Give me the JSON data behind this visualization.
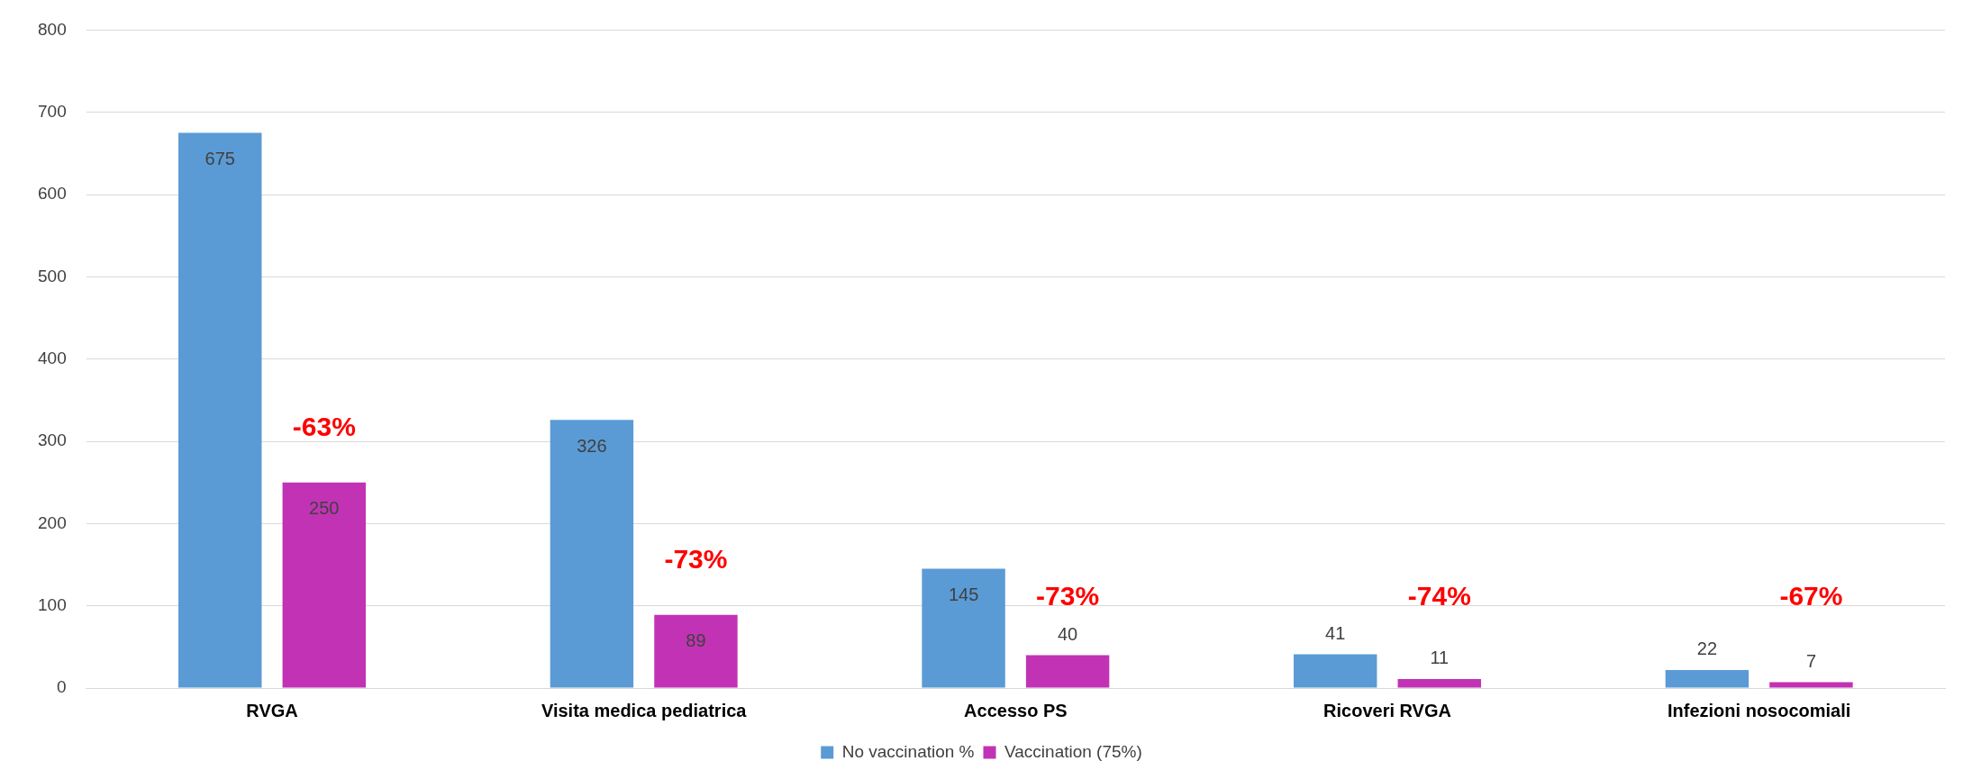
{
  "chart_data": {
    "type": "bar",
    "categories": [
      "RVGA",
      "Visita medica pediatrica",
      "Accesso PS",
      "Ricoveri RVGA",
      "Infezioni nosocomiali"
    ],
    "series": [
      {
        "name": "No vaccination %",
        "color": "#5b9bd5",
        "values": [
          675,
          326,
          145,
          41,
          22
        ]
      },
      {
        "name": "Vaccination (75%)",
        "color": "#c133b4",
        "values": [
          250,
          89,
          40,
          11,
          7
        ]
      }
    ],
    "ylim": [
      0,
      800
    ],
    "yticks": [
      0,
      100,
      200,
      300,
      400,
      500,
      600,
      700,
      800
    ],
    "grid": "y",
    "legend": "bottom",
    "data_labels": true,
    "annotations": [
      "-63%",
      "-73%",
      "-73%",
      "-74%",
      "-67%"
    ]
  }
}
